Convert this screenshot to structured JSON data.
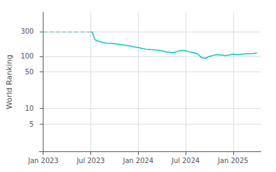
{
  "chart_data": {
    "type": "line",
    "ylabel": "World Ranking",
    "log": "y",
    "grid": true,
    "xlim": [
      -0.5,
      27.5
    ],
    "xticks": [
      {
        "value": 0,
        "label": "Jan 2023"
      },
      {
        "value": 6,
        "label": "Jul 2023"
      },
      {
        "value": 12,
        "label": "Jan 2024"
      },
      {
        "value": 18,
        "label": "Jul 2024"
      },
      {
        "value": 24,
        "label": "Jan 2025"
      }
    ],
    "ylim": [
      1.5,
      700
    ],
    "yticks": [
      5,
      10,
      50,
      100,
      300
    ],
    "series": [
      {
        "color": "#80c8c0",
        "line_style": "dashed",
        "x": [
          0,
          1,
          2,
          3,
          4,
          5,
          6.0
        ],
        "values": [
          295,
          295,
          295,
          295,
          295,
          295,
          295
        ]
      },
      {
        "color": "#00c8c0",
        "line_style": "solid",
        "x": [
          6.0,
          6.2,
          6.5,
          7.0,
          7.5,
          8.0,
          8.5,
          9.0,
          9.5,
          10.0,
          10.5,
          11.0,
          11.5,
          12.0,
          12.5,
          13.0,
          13.5,
          14.0,
          14.5,
          15.0,
          15.5,
          16.0,
          16.5,
          17.0,
          17.2,
          17.5,
          18.0,
          18.2,
          18.5,
          19.0,
          19.5,
          20.0,
          20.5,
          21.0,
          21.5,
          22.0,
          22.5,
          23.0,
          23.5,
          24.0,
          24.5,
          25.0,
          25.5,
          26.0,
          26.5,
          27.0
        ],
        "values": [
          295,
          295,
          210,
          195,
          185,
          180,
          178,
          175,
          172,
          168,
          162,
          158,
          152,
          148,
          142,
          138,
          135,
          133,
          132,
          128,
          122,
          120,
          118,
          125,
          128,
          130,
          128,
          126,
          122,
          118,
          112,
          95,
          92,
          100,
          105,
          108,
          106,
          104,
          106,
          110,
          108,
          110,
          112,
          113,
          114,
          116
        ]
      }
    ]
  }
}
